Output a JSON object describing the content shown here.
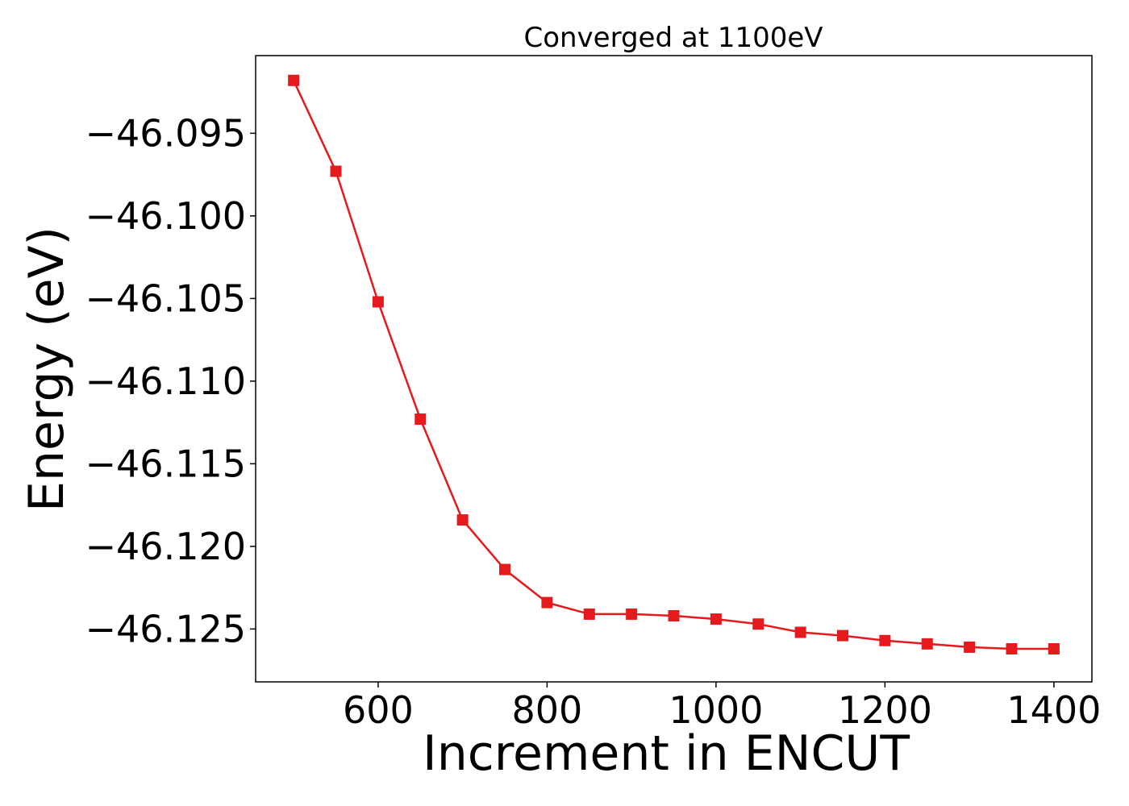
{
  "chart_data": {
    "type": "line",
    "title": "Converged at 1100eV",
    "xlabel": "Increment in ENCUT",
    "ylabel": "Energy (eV)",
    "xlim": [
      455,
      1445
    ],
    "ylim": [
      -46.1282,
      -46.0903
    ],
    "xticks": [
      600,
      800,
      1000,
      1200,
      1400
    ],
    "xtick_labels": [
      "600",
      "800",
      "1000",
      "1200",
      "1400"
    ],
    "yticks": [
      -46.095,
      -46.1,
      -46.105,
      -46.11,
      -46.115,
      -46.12,
      -46.125
    ],
    "ytick_labels": [
      "−46.095",
      "−46.100",
      "−46.105",
      "−46.110",
      "−46.115",
      "−46.120",
      "−46.125"
    ],
    "grid": false,
    "marker": "square",
    "series": [
      {
        "color": "#e41a1c",
        "x": [
          500,
          550,
          600,
          650,
          700,
          750,
          800,
          850,
          900,
          950,
          1000,
          1050,
          1100,
          1150,
          1200,
          1250,
          1300,
          1350,
          1400
        ],
        "y": [
          -46.0918,
          -46.0973,
          -46.1052,
          -46.1123,
          -46.1184,
          -46.1214,
          -46.1234,
          -46.1241,
          -46.1241,
          -46.1242,
          -46.1244,
          -46.1247,
          -46.1252,
          -46.1254,
          -46.1257,
          -46.1259,
          -46.1261,
          -46.1262,
          -46.1262
        ]
      }
    ]
  }
}
